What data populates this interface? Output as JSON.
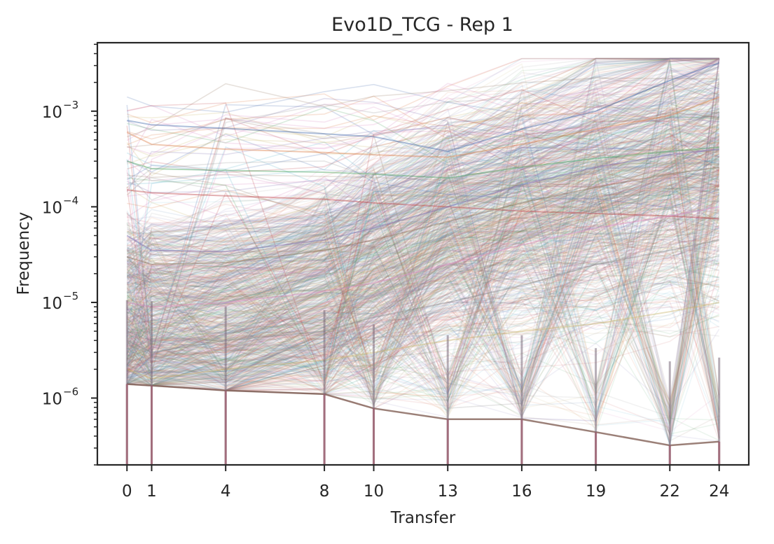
{
  "chart_data": {
    "type": "line",
    "title": "Evo1D_TCG - Rep 1",
    "xlabel": "Transfer",
    "ylabel": "Frequency",
    "x": [
      0,
      1,
      4,
      8,
      10,
      13,
      16,
      19,
      22,
      24
    ],
    "xlim": [
      -1.2,
      25.2
    ],
    "ylim": [
      2e-07,
      0.0052
    ],
    "yscale": "log",
    "ytick_base": "10",
    "yticks": [
      {
        "value": 0.001,
        "exp": "−3"
      },
      {
        "value": 0.0001,
        "exp": "−4"
      },
      {
        "value": 1e-05,
        "exp": "−5"
      },
      {
        "value": 1e-06,
        "exp": "−6"
      }
    ],
    "detection_floor": [
      1.4e-06,
      1.35e-06,
      1.2e-06,
      1.1e-06,
      7.8e-07,
      6e-07,
      6e-07,
      4.4e-07,
      3.2e-07,
      3.5e-07
    ],
    "representative_series": [
      {
        "values": [
          0.0008,
          0.00072,
          0.00066,
          0.00058,
          0.00054,
          0.00038,
          0.00065,
          0.001,
          0.0021,
          0.0032
        ]
      },
      {
        "values": [
          0.0006,
          0.00045,
          0.0004,
          0.00037,
          0.00035,
          0.00033,
          0.00045,
          0.00065,
          0.0009,
          0.0014
        ]
      },
      {
        "values": [
          0.0003,
          0.00025,
          0.00024,
          0.00023,
          0.00022,
          0.0002,
          0.00026,
          0.00032,
          0.00038,
          0.00042
        ]
      },
      {
        "values": [
          0.00015,
          0.00014,
          0.00013,
          0.00012,
          0.00011,
          0.0001,
          9e-05,
          8.5e-05,
          8e-05,
          7.5e-05
        ]
      },
      {
        "values": [
          5e-05,
          3.5e-05,
          3.4e-05,
          4.5e-05,
          6e-05,
          0.0001,
          0.00017,
          0.00026,
          0.00035,
          0.0004
        ]
      },
      {
        "values": [
          3e-05,
          2.5e-05,
          2.6e-05,
          3.5e-05,
          4.5e-05,
          7e-05,
          0.00011,
          0.00016,
          0.00022,
          0.00026
        ]
      },
      {
        "values": [
          1e-05,
          9e-06,
          1e-05,
          1.3e-05,
          1.6e-05,
          2.5e-05,
          4e-05,
          6e-05,
          8e-05,
          0.0001
        ]
      },
      {
        "values": [
          4e-06,
          3e-06,
          4e-06,
          5e-06,
          7e-06,
          1e-05,
          1.5e-05,
          2.5e-05,
          3.5e-05,
          4.5e-05
        ]
      },
      {
        "values": [
          2e-06,
          1.6e-06,
          2e-06,
          2.5e-06,
          3e-06,
          4e-06,
          5e-06,
          6e-06,
          8e-06,
          1e-05
        ]
      }
    ],
    "colors": [
      "#4c72b0",
      "#dd8452",
      "#55a868",
      "#c44e52",
      "#8172b3",
      "#937860",
      "#da8bc3",
      "#8c8c8c",
      "#ccb974",
      "#64b5cd"
    ],
    "grid": false,
    "legend": "none"
  }
}
